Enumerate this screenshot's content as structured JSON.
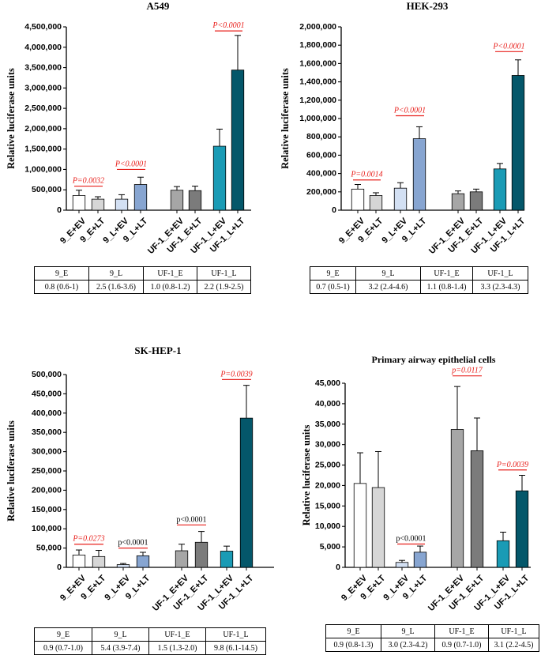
{
  "chart_data": [
    {
      "type": "bar",
      "title": "A549",
      "ylabel": "Relative luciferase units",
      "ylim": [
        0,
        4500000
      ],
      "yticks": [
        0,
        500000,
        1000000,
        1500000,
        2000000,
        2500000,
        3000000,
        3500000,
        4000000,
        4500000
      ],
      "ytick_labels": [
        "0",
        "500,000",
        "1,000,000",
        "1,500,000",
        "2,000,000",
        "2,500,000",
        "3,000,000",
        "3,500,000",
        "4,000,000",
        "4,500,000"
      ],
      "categories": [
        "9_E+EV",
        "9_E+LT",
        "9_L+EV",
        "9_L+LT",
        "UF-1_E+EV",
        "UF-1_E+LT",
        "UF-1_L+EV",
        "UF-1_L+LT"
      ],
      "values": [
        360000,
        270000,
        270000,
        630000,
        490000,
        480000,
        1570000,
        3440000
      ],
      "errors": [
        130000,
        60000,
        110000,
        180000,
        90000,
        110000,
        420000,
        850000
      ],
      "annotations": [
        {
          "text": "P=0.0032",
          "bars": [
            0,
            1
          ],
          "at": 590000,
          "italic": true
        },
        {
          "text": "P<0.0001",
          "bars": [
            2,
            3
          ],
          "at": 1000000,
          "italic": true
        },
        {
          "text": "P<0.0001",
          "bars": [
            6,
            7
          ],
          "at": 4400000,
          "italic": true
        }
      ],
      "table": {
        "headers": [
          "9_E",
          "9_L",
          "UF-1_E",
          "UF-1_L"
        ],
        "values": [
          "0.8 (0.6-1)",
          "2.5 (1.6-3.6)",
          "1.0 (0.8-1.2)",
          "2.2 (1.9-2.5)"
        ]
      }
    },
    {
      "type": "bar",
      "title": "HEK-293",
      "ylabel": "Relative luciferase units",
      "ylim": [
        0,
        2000000
      ],
      "yticks": [
        0,
        200000,
        400000,
        600000,
        800000,
        1000000,
        1200000,
        1400000,
        1600000,
        1800000,
        2000000
      ],
      "ytick_labels": [
        "0",
        "200,000",
        "400,000",
        "600,000",
        "800,000",
        "1,000,000",
        "1,200,000",
        "1,400,000",
        "1,600,000",
        "1,800,000",
        "2,000,000"
      ],
      "categories": [
        "9_E+EV",
        "9_E+LT",
        "9_L+EV",
        "9_L+LT",
        "UF-1_E+EV",
        "UF-1_E+LT",
        "UF-1_L+EV",
        "UF-1_L+LT"
      ],
      "values": [
        230000,
        160000,
        240000,
        780000,
        180000,
        200000,
        450000,
        1470000
      ],
      "errors": [
        50000,
        30000,
        60000,
        130000,
        30000,
        30000,
        60000,
        170000
      ],
      "annotations": [
        {
          "text": "P=0.0014",
          "bars": [
            0,
            1
          ],
          "at": 330000,
          "italic": true
        },
        {
          "text": "P<0.0001",
          "bars": [
            2,
            3
          ],
          "at": 1030000,
          "italic": true
        },
        {
          "text": "P<0.0001",
          "bars": [
            6,
            7
          ],
          "at": 1730000,
          "italic": true
        }
      ],
      "table": {
        "headers": [
          "9_E",
          "9_L",
          "UF-1_E",
          "UF-1_L"
        ],
        "values": [
          "0.7 (0.5-1)",
          "3.2 (2.4-4.6)",
          "1.1 (0.8-1.4)",
          "3.3 (2.3-4.3)"
        ]
      }
    },
    {
      "type": "bar",
      "title": "SK-HEP-1",
      "ylabel": "Relative luciferase units",
      "ylim": [
        0,
        500000
      ],
      "yticks": [
        0,
        50000,
        100000,
        150000,
        200000,
        250000,
        300000,
        350000,
        400000,
        450000,
        500000
      ],
      "ytick_labels": [
        "0",
        "50,000",
        "100,000",
        "150,000",
        "200,000",
        "250,000",
        "300,000",
        "350,000",
        "400,000",
        "450,000",
        "500,000"
      ],
      "categories": [
        "9_E+EV",
        "9_E+LT",
        "9_L+EV",
        "9_L+LT",
        "UF-1_E+EV",
        "UF-1_E+LT",
        "UF-1_L+EV",
        "UF-1_L+LT"
      ],
      "values": [
        32000,
        28000,
        7000,
        30000,
        43000,
        65000,
        42000,
        387000
      ],
      "errors": [
        13000,
        16000,
        3000,
        9000,
        17000,
        28000,
        13000,
        85000
      ],
      "annotations": [
        {
          "text": "P=0.0273",
          "bars": [
            0,
            1
          ],
          "at": 60000,
          "italic": true
        },
        {
          "text": "p<0.0001",
          "bars": [
            2,
            3
          ],
          "at": 50000,
          "italic": false
        },
        {
          "text": "p<0.0001",
          "bars": [
            4,
            5
          ],
          "at": 110000,
          "italic": false
        },
        {
          "text": "P=0.0039",
          "bars": [
            6,
            7
          ],
          "at": 487000,
          "italic": true
        }
      ],
      "table": {
        "headers": [
          "9_E",
          "9_L",
          "UF-1_E",
          "UF-1_L"
        ],
        "values": [
          "0.9 (0.7-1.0)",
          "5.4 (3.9-7.4)",
          "1.5 (1.3-2.0)",
          "9.8 (6.1-14.5)"
        ]
      }
    },
    {
      "type": "bar",
      "title": "Primary airway epithelial cells",
      "ylabel": "Relative luciferase units",
      "ylim": [
        0,
        45000
      ],
      "yticks": [
        0,
        5000,
        10000,
        15000,
        20000,
        25000,
        30000,
        35000,
        40000,
        45000
      ],
      "ytick_labels": [
        "0",
        "5,000",
        "10,000",
        "15,000",
        "20,000",
        "25,000",
        "30,000",
        "35,000",
        "40,000",
        "45,000"
      ],
      "categories": [
        "9_E+EV",
        "9_E+LT",
        "9_L+EV",
        "9_L+LT",
        "UF-1_E+EV",
        "UF-1_E+LT",
        "UF-1_L+EV",
        "UF-1_L+LT"
      ],
      "values": [
        20500,
        19500,
        1200,
        3700,
        33700,
        28500,
        6500,
        18700
      ],
      "errors": [
        7500,
        8800,
        500,
        1500,
        10500,
        8000,
        2100,
        3800
      ],
      "annotations": [
        {
          "text": "p<0.0001",
          "bars": [
            2,
            3
          ],
          "at": 5700,
          "italic": false
        },
        {
          "text": "p=0.0117",
          "bars": [
            4,
            5
          ],
          "at": 46800,
          "italic": true
        },
        {
          "text": "P=0.0039",
          "bars": [
            6,
            7
          ],
          "at": 23800,
          "italic": true
        }
      ],
      "table": {
        "headers": [
          "9_E",
          "9_L",
          "UF-1_E",
          "UF-1_L"
        ],
        "values": [
          "0.9 (0.8-1.3)",
          "3.0 (2.3-4.2)",
          "0.9 (0.7-1.0)",
          "3.1 (2.2-4.5)"
        ]
      }
    }
  ],
  "colors": {
    "bars": [
      "#ffffff",
      "#d6d6d6",
      "#d3e0f3",
      "#87a5d1",
      "#a6a6a6",
      "#7b7b7b",
      "#1a9bb5",
      "#04576a"
    ],
    "annotation": "#e8201c",
    "axis": "#000000"
  }
}
